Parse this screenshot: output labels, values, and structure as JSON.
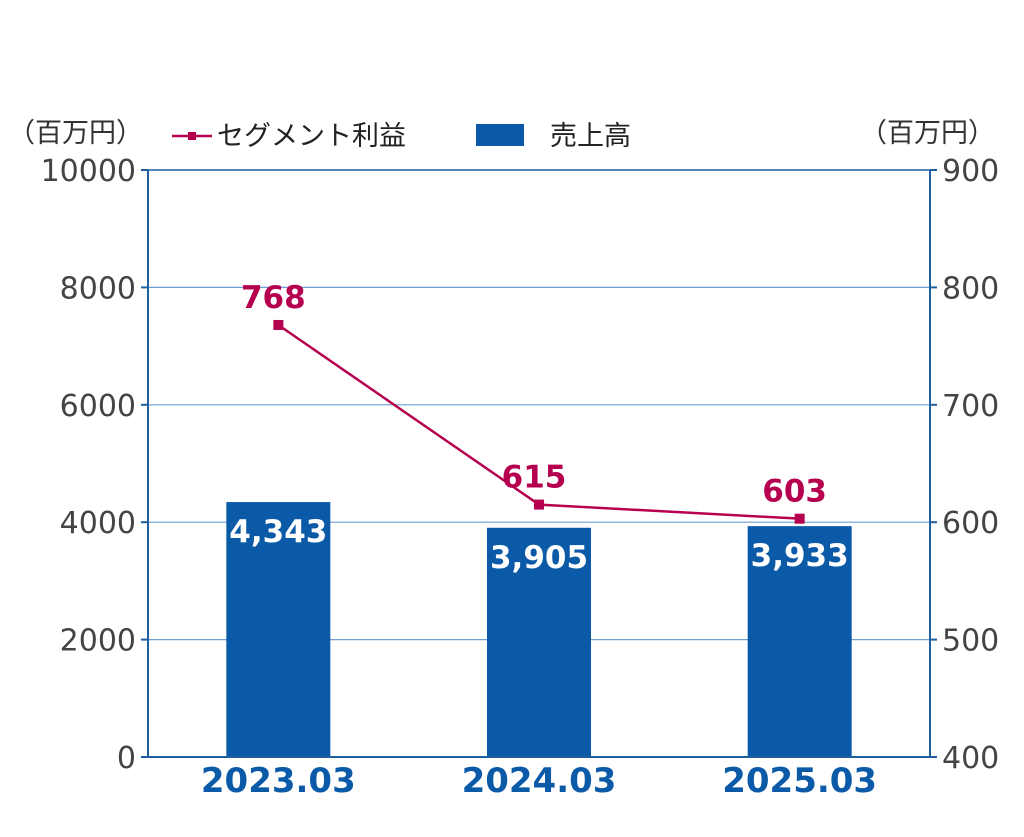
{
  "chart_data": {
    "type": "bar",
    "categories": [
      "2023.03",
      "2024.03",
      "2025.03"
    ],
    "series": [
      {
        "name": "売上高",
        "type": "bar",
        "axis": "left",
        "values": [
          4343,
          3905,
          3933
        ],
        "labels": [
          "4,343",
          "3,905",
          "3,933"
        ],
        "color": "#0b5aa8"
      },
      {
        "name": "セグメント利益",
        "type": "line",
        "axis": "right",
        "values": [
          768,
          615,
          603
        ],
        "labels": [
          "768",
          "615",
          "603"
        ],
        "color": "#b5004f"
      }
    ],
    "y_left": {
      "unit_label": "（百万円）",
      "ylim": [
        0,
        10000
      ],
      "ticks": [
        "0",
        "2000",
        "4000",
        "6000",
        "8000",
        "10000"
      ]
    },
    "y_right": {
      "unit_label": "（百万円）",
      "ylim": [
        400,
        900
      ],
      "ticks": [
        "400",
        "500",
        "600",
        "700",
        "800",
        "900"
      ]
    },
    "grid": true,
    "legend_position": "top",
    "colors": {
      "axis": "#1e5fa0",
      "grid": "#6e9fd0",
      "category_text": "#0b5aa8"
    }
  }
}
